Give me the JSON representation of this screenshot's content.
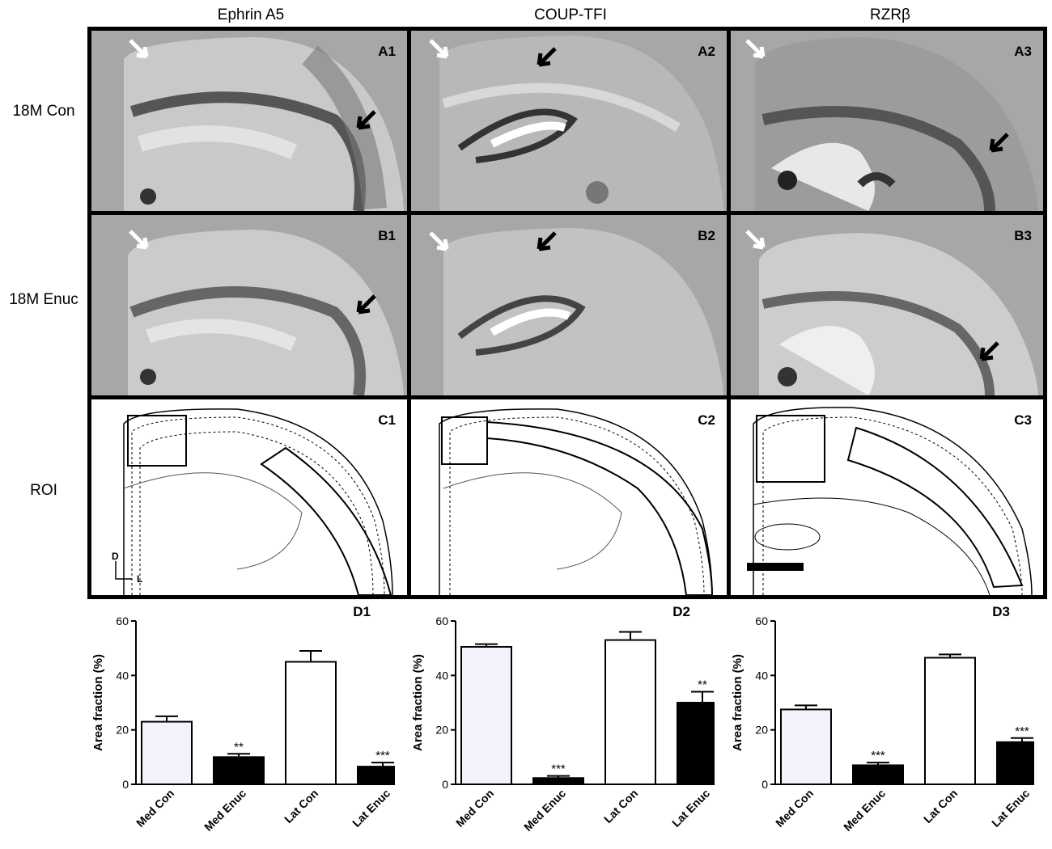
{
  "columns": [
    "Ephrin A5",
    "COUP-TFI",
    "RZRβ"
  ],
  "rows": [
    "18M Con",
    "18M Enuc",
    "ROI"
  ],
  "panels": {
    "A": [
      "A1",
      "A2",
      "A3"
    ],
    "B": [
      "B1",
      "B2",
      "B3"
    ],
    "C": [
      "C1",
      "C2",
      "C3"
    ]
  },
  "orientation": {
    "dorsal": "D",
    "lateral": "L"
  },
  "chart_data": [
    {
      "type": "bar",
      "panel_label": "D1",
      "categories": [
        "Med Con",
        "Med Enuc",
        "Lat Con",
        "Lat Enuc"
      ],
      "values": [
        23,
        10,
        45,
        6.5
      ],
      "errors": [
        2,
        1.2,
        4,
        1.5
      ],
      "significance": [
        "",
        "**",
        "",
        "***"
      ],
      "ylabel": "Area fraction (%)",
      "ylim": [
        0,
        60
      ],
      "yticks": [
        0,
        20,
        40,
        60
      ],
      "fills": [
        "#f3f2fb",
        "#000000",
        "#ffffff",
        "#000000"
      ]
    },
    {
      "type": "bar",
      "panel_label": "D2",
      "categories": [
        "Med Con",
        "Med Enuc",
        "Lat Con",
        "Lat Enuc"
      ],
      "values": [
        50.5,
        2.3,
        53,
        30
      ],
      "errors": [
        1,
        0.8,
        3,
        4
      ],
      "significance": [
        "",
        "***",
        "",
        "**"
      ],
      "ylabel": "Area fraction (%)",
      "ylim": [
        0,
        60
      ],
      "yticks": [
        0,
        20,
        40,
        60
      ],
      "fills": [
        "#f3f2fb",
        "#000000",
        "#ffffff",
        "#000000"
      ]
    },
    {
      "type": "bar",
      "panel_label": "D3",
      "categories": [
        "Med Con",
        "Med Enuc",
        "Lat Con",
        "Lat Enuc"
      ],
      "values": [
        27.5,
        7,
        46.5,
        15.5
      ],
      "errors": [
        1.5,
        1,
        1.2,
        1.5
      ],
      "significance": [
        "",
        "***",
        "",
        "***"
      ],
      "ylabel": "Area fraction (%)",
      "ylim": [
        0,
        60
      ],
      "yticks": [
        0,
        20,
        40,
        60
      ],
      "fills": [
        "#f3f2fb",
        "#000000",
        "#ffffff",
        "#000000"
      ]
    }
  ]
}
